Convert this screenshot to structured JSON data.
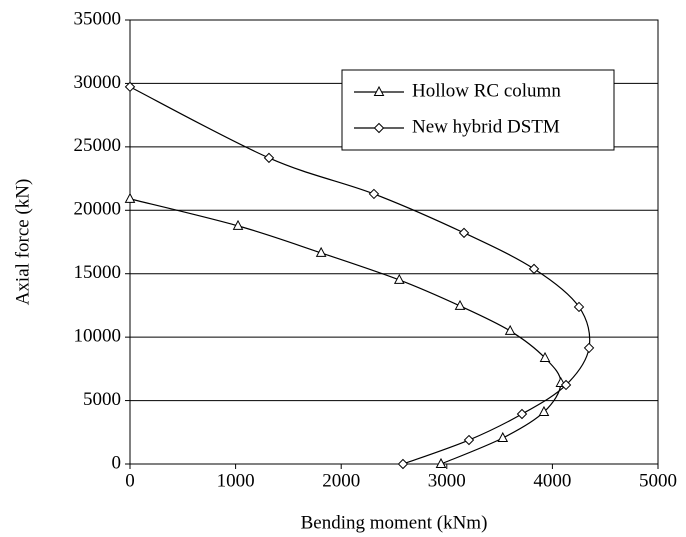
{
  "chart_data": {
    "type": "line",
    "x_label": "Bending moment (kNm)",
    "y_label": "Axial force (kN)",
    "xlim": [
      0,
      5000
    ],
    "xticks": [
      0,
      1000,
      2000,
      3000,
      4000,
      5000
    ],
    "ylim": [
      0,
      35000
    ],
    "yticks": [
      0,
      5000,
      10000,
      15000,
      20000,
      25000,
      30000,
      35000
    ],
    "grid": true,
    "legend": "upper right",
    "series": [
      {
        "name": "Hollow RC column",
        "color": "#000000",
        "marker": "triangle",
        "x": [
          0,
          1023,
          1810,
          2550,
          3125,
          3600,
          3930,
          4080,
          3920,
          3530,
          2945
        ],
        "values": [
          20900,
          18770,
          16640,
          14510,
          12460,
          10490,
          8360,
          6390,
          4100,
          2050,
          0
        ]
      },
      {
        "name": "New hybrid  DSTM",
        "color": "#000000",
        "marker": "diamond",
        "x": [
          0,
          1316,
          2310,
          3163,
          3826,
          4252,
          4347,
          4129,
          3712,
          3210,
          2585
        ],
        "values": [
          29730,
          24130,
          21290,
          18220,
          15380,
          12380,
          9150,
          6230,
          3940,
          1890,
          0
        ]
      }
    ]
  }
}
